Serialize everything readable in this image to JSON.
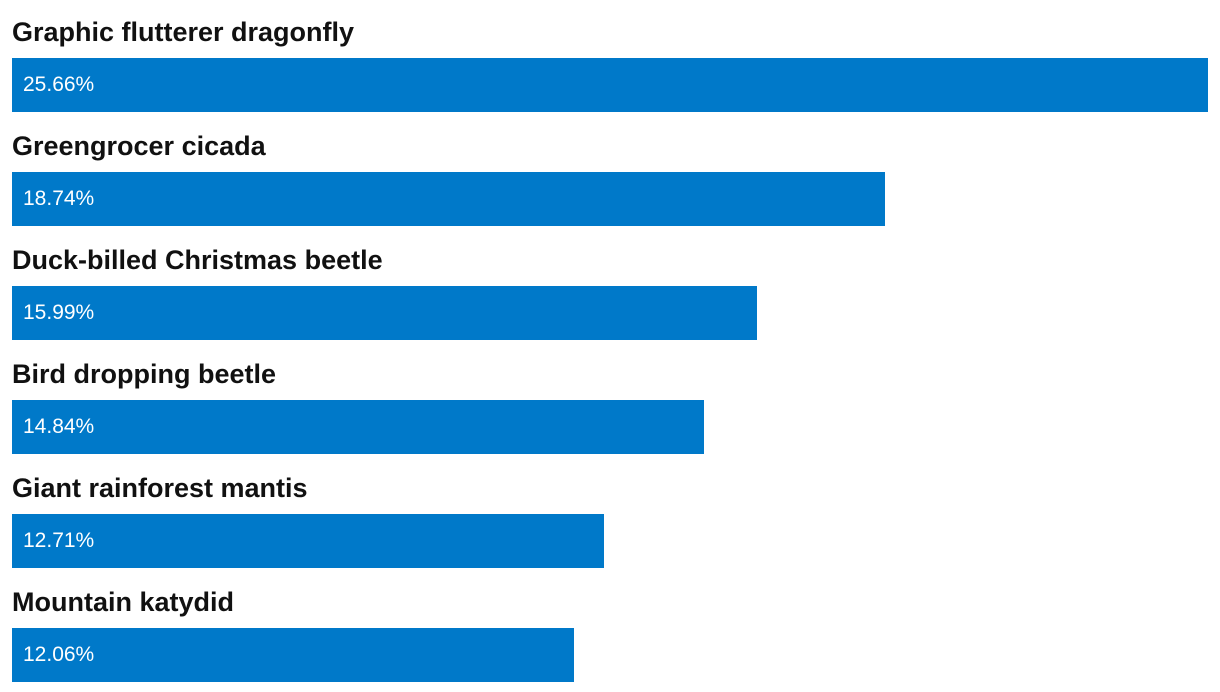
{
  "colors": {
    "bar": "#0079c9",
    "label_text": "#111111",
    "value_text": "#ffffff"
  },
  "chart_data": {
    "type": "bar",
    "orientation": "horizontal",
    "categories": [
      "Graphic flutterer dragonfly",
      "Greengrocer cicada",
      "Duck-billed Christmas beetle",
      "Bird dropping beetle",
      "Giant rainforest mantis",
      "Mountain katydid"
    ],
    "values": [
      25.66,
      18.74,
      15.99,
      14.84,
      12.71,
      12.06
    ],
    "value_labels": [
      "25.66%",
      "18.74%",
      "15.99%",
      "14.84%",
      "12.71%",
      "12.06%"
    ],
    "unit": "%",
    "xlim": [
      0,
      25.66
    ],
    "grid": false,
    "legend": "none"
  }
}
